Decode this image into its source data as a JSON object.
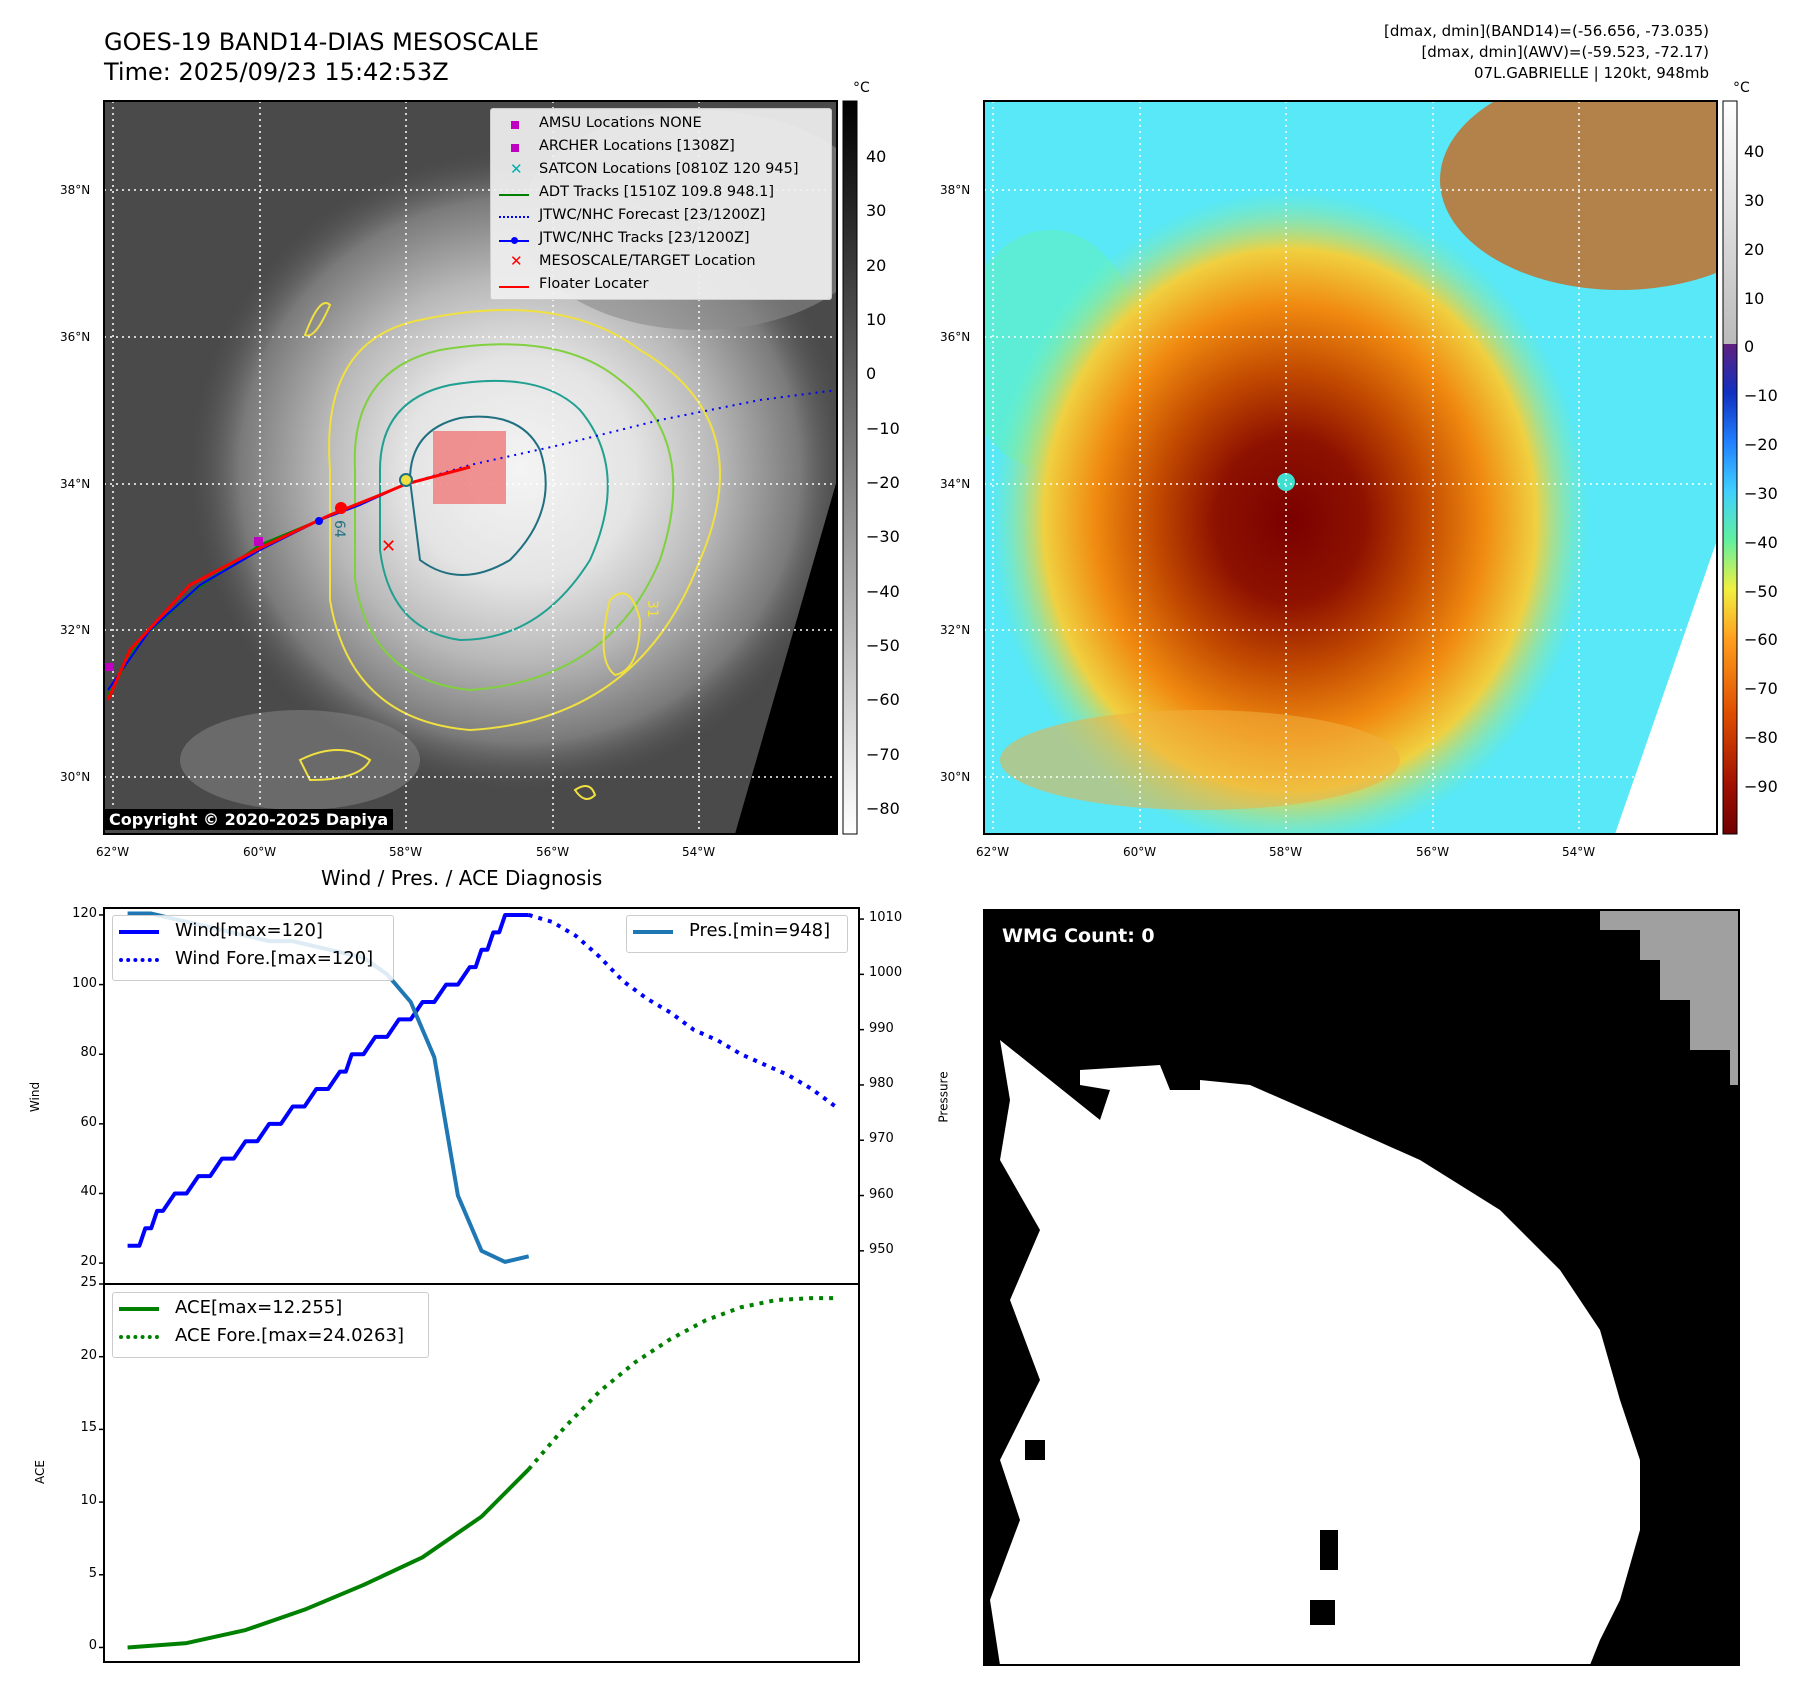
{
  "header": {
    "title_line1": "GOES-19 BAND14-DIAS MESOSCALE",
    "title_line2": "Time: 2025/09/23 15:42:53Z",
    "info_line1": "[dmax, dmin](BAND14)=(-56.656, -73.035)",
    "info_line2": "[dmax, dmin](AWV)=(-59.523, -72.17)",
    "info_line3": "07L.GABRIELLE | 120kt, 948mb"
  },
  "copyright": "Copyright © 2020-2025 Dapiya",
  "map": {
    "lat_labels": [
      "38°N",
      "36°N",
      "34°N",
      "32°N",
      "30°N"
    ],
    "lon_labels": [
      "62°W",
      "60°W",
      "58°W",
      "56°W",
      "54°W"
    ],
    "legend": [
      {
        "label": "AMSU Locations NONE",
        "color": "#c000c0",
        "marker": "square"
      },
      {
        "label": "ARCHER Locations [1308Z]",
        "color": "#c000c0",
        "marker": "square"
      },
      {
        "label": "SATCON Locations [0810Z 120 945]",
        "color": "#00b0b0",
        "marker": "x"
      },
      {
        "label": "ADT Tracks [1510Z 109.8 948.1]",
        "color": "#008000",
        "marker": "line"
      },
      {
        "label": "JTWC/NHC Forecast [23/1200Z]",
        "color": "#0000ff",
        "marker": "dotted"
      },
      {
        "label": "JTWC/NHC Tracks [23/1200Z]",
        "color": "#0000ff",
        "marker": "line-dot"
      },
      {
        "label": "MESOSCALE/TARGET Location",
        "color": "#ff0000",
        "marker": "x"
      },
      {
        "label": "Floater Locater",
        "color": "#ff0000",
        "marker": "line"
      }
    ],
    "contour_labels": [
      "64",
      "31"
    ]
  },
  "colorbar_gray": {
    "unit": "°C",
    "ticks": [
      "40",
      "30",
      "20",
      "10",
      "0",
      "−10",
      "−20",
      "−30",
      "−40",
      "−50",
      "−60",
      "−70",
      "−80"
    ]
  },
  "colorbar_awv": {
    "unit": "°C",
    "ticks": [
      "40",
      "30",
      "20",
      "10",
      "0",
      "−10",
      "−20",
      "−30",
      "−40",
      "−50",
      "−60",
      "−70",
      "−80",
      "−90"
    ]
  },
  "wmg": {
    "label": "WMG Count: 0"
  },
  "chart_data": [
    {
      "type": "line",
      "title": "Wind / Pres. / ACE Diagnosis",
      "ylabel": "Wind",
      "y2label": "Pressure",
      "ylim": [
        14,
        122
      ],
      "y2lim": [
        944,
        1012
      ],
      "yticks": [
        20,
        40,
        60,
        80,
        100,
        120
      ],
      "y2ticks": [
        950,
        960,
        970,
        980,
        990,
        1000,
        1010
      ],
      "series": [
        {
          "name": "Wind[max=120]",
          "color": "#0000ff",
          "style": "solid",
          "axis": "left",
          "x": [
            0,
            1,
            1.5,
            2,
            2.5,
            3,
            4,
            5,
            6,
            7,
            8,
            9,
            10,
            11,
            12,
            13,
            14,
            15,
            16,
            17,
            18,
            18.5,
            19,
            20,
            21,
            22,
            23,
            24,
            25,
            26,
            27,
            28,
            29,
            29.5,
            30,
            30.5,
            31,
            31.5,
            32,
            32.5,
            33,
            34
          ],
          "y": [
            25,
            25,
            30,
            30,
            35,
            35,
            40,
            40,
            45,
            45,
            50,
            50,
            55,
            55,
            60,
            60,
            65,
            65,
            70,
            70,
            75,
            75,
            80,
            80,
            85,
            85,
            90,
            90,
            95,
            95,
            100,
            100,
            105,
            105,
            110,
            110,
            115,
            115,
            120,
            120,
            120,
            120
          ]
        },
        {
          "name": "Wind Fore.[max=120]",
          "color": "#0000ff",
          "style": "dotted",
          "axis": "left",
          "x": [
            34,
            36,
            38,
            40,
            42,
            44,
            46,
            48,
            50,
            52,
            54,
            56,
            58,
            60
          ],
          "y": [
            120,
            118,
            114,
            108,
            101,
            96,
            92,
            87,
            84,
            80,
            77,
            74,
            70,
            65
          ]
        },
        {
          "name": "Pres.[min=948]",
          "color": "#1f77b4",
          "style": "solid",
          "axis": "right",
          "x": [
            0,
            2,
            4,
            6,
            8,
            10,
            12,
            14,
            16,
            18,
            20,
            22,
            24,
            26,
            28,
            30,
            32,
            34
          ],
          "y": [
            1011,
            1011,
            1010,
            1009,
            1008,
            1007,
            1006,
            1006,
            1005,
            1004,
            1003,
            1000,
            995,
            985,
            960,
            950,
            948,
            949
          ]
        }
      ]
    },
    {
      "type": "line",
      "ylabel": "ACE",
      "ylim": [
        -1,
        25
      ],
      "yticks": [
        0,
        5,
        10,
        15,
        20,
        25
      ],
      "series": [
        {
          "name": "ACE[max=12.255]",
          "color": "#008000",
          "style": "solid",
          "x": [
            0,
            5,
            10,
            15,
            20,
            25,
            30,
            34
          ],
          "y": [
            0,
            0.3,
            1.2,
            2.6,
            4.3,
            6.2,
            9.0,
            12.255
          ]
        },
        {
          "name": "ACE Fore.[max=24.0263]",
          "color": "#008000",
          "style": "dotted",
          "x": [
            34,
            37,
            40,
            43,
            46,
            49,
            52,
            55,
            58,
            60
          ],
          "y": [
            12.255,
            15.1,
            17.6,
            19.6,
            21.2,
            22.5,
            23.4,
            23.9,
            24.0263,
            24.0263
          ]
        }
      ]
    }
  ]
}
